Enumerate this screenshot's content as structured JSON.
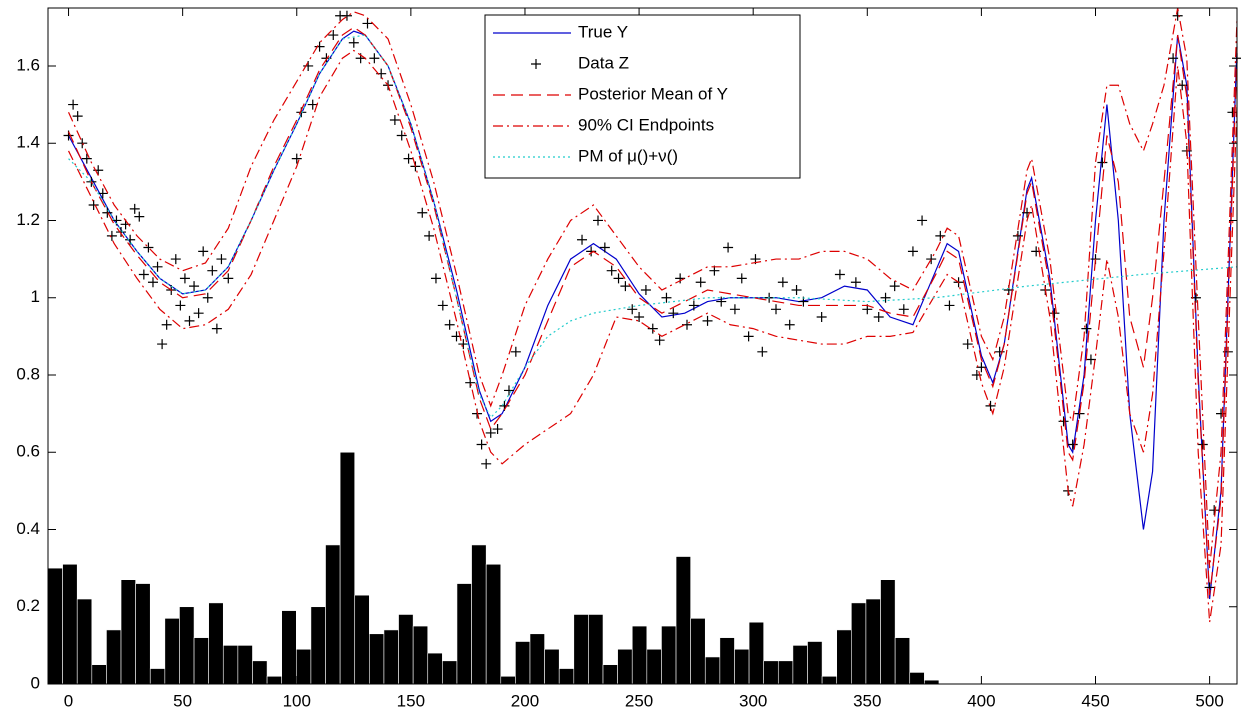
{
  "chart_data": {
    "type": "line",
    "xlim": [
      -9,
      512
    ],
    "ylim": [
      0,
      1.75
    ],
    "xticks": [
      0,
      50,
      100,
      150,
      200,
      250,
      300,
      350,
      400,
      450,
      500
    ],
    "yticks": [
      0,
      0.2,
      0.4,
      0.6,
      0.8,
      1,
      1.2,
      1.4,
      1.6
    ],
    "legend": "top",
    "series": [
      {
        "name": "True Y",
        "color": "#0000cc",
        "style": "solid",
        "x": [
          0,
          10,
          20,
          30,
          40,
          50,
          60,
          70,
          80,
          90,
          100,
          110,
          120,
          125,
          130,
          140,
          150,
          160,
          170,
          180,
          185,
          190,
          200,
          210,
          220,
          230,
          240,
          250,
          260,
          270,
          280,
          290,
          300,
          310,
          320,
          330,
          340,
          350,
          360,
          370,
          380,
          385,
          390,
          400,
          405,
          410,
          420,
          422,
          430,
          438,
          440,
          445,
          450,
          455,
          460,
          465,
          471,
          475,
          480,
          486,
          490,
          495,
          500,
          505,
          512
        ],
        "values": [
          1.42,
          1.31,
          1.2,
          1.12,
          1.05,
          1.01,
          1.02,
          1.08,
          1.2,
          1.33,
          1.45,
          1.58,
          1.67,
          1.69,
          1.68,
          1.6,
          1.45,
          1.25,
          1.02,
          0.76,
          0.68,
          0.7,
          0.82,
          0.98,
          1.1,
          1.14,
          1.1,
          1.01,
          0.95,
          0.96,
          0.99,
          1,
          1,
          1,
          0.99,
          1,
          1.03,
          1.02,
          0.95,
          0.93,
          1.07,
          1.14,
          1.12,
          0.85,
          0.78,
          0.88,
          1.28,
          1.31,
          1.05,
          0.62,
          0.6,
          0.8,
          1.2,
          1.5,
          1.2,
          0.7,
          0.4,
          0.55,
          1.2,
          1.68,
          1.55,
          0.8,
          0.22,
          0.5,
          1.65
        ]
      },
      {
        "name": "Data Z",
        "color": "#000000",
        "style": "none",
        "marker": "+",
        "x": [
          0,
          2,
          4,
          6,
          8,
          10,
          11,
          13,
          15,
          17,
          19,
          21,
          23,
          25,
          27,
          29,
          31,
          33,
          35,
          37,
          39,
          41,
          43,
          45,
          47,
          49,
          51,
          53,
          55,
          57,
          59,
          61,
          63,
          65,
          67,
          70,
          100,
          102,
          105,
          107,
          110,
          113,
          116,
          119,
          122,
          125,
          128,
          131,
          134,
          137,
          140,
          143,
          146,
          149,
          152,
          155,
          158,
          161,
          164,
          167,
          170,
          173,
          176,
          179,
          181,
          183,
          185,
          188,
          191,
          193,
          196,
          225,
          229,
          232,
          235,
          238,
          241,
          244,
          247,
          250,
          253,
          256,
          259,
          262,
          265,
          268,
          271,
          274,
          277,
          280,
          283,
          286,
          289,
          292,
          295,
          298,
          301,
          304,
          307,
          310,
          313,
          316,
          319,
          322,
          330,
          338,
          345,
          350,
          355,
          358,
          362,
          366,
          370,
          374,
          378,
          382,
          386,
          390,
          394,
          398,
          400,
          404,
          408,
          412,
          416,
          420,
          424,
          428,
          432,
          436,
          438,
          440,
          443,
          446,
          448,
          450,
          453,
          484,
          486,
          488,
          490,
          494,
          497,
          500,
          502,
          505,
          508,
          510,
          512
        ],
        "values": [
          1.42,
          1.5,
          1.47,
          1.4,
          1.36,
          1.3,
          1.24,
          1.33,
          1.27,
          1.22,
          1.16,
          1.2,
          1.17,
          1.19,
          1.15,
          1.23,
          1.21,
          1.06,
          1.13,
          1.04,
          1.08,
          0.88,
          0.93,
          1.02,
          1.1,
          0.98,
          1.05,
          0.94,
          1.03,
          0.96,
          1.12,
          1,
          1.07,
          0.92,
          1.1,
          1.05,
          1.36,
          1.48,
          1.6,
          1.5,
          1.65,
          1.62,
          1.68,
          1.73,
          1.73,
          1.66,
          1.62,
          1.71,
          1.62,
          1.58,
          1.55,
          1.46,
          1.42,
          1.36,
          1.34,
          1.22,
          1.16,
          1.05,
          0.98,
          0.93,
          0.9,
          0.88,
          0.78,
          0.7,
          0.62,
          0.57,
          0.65,
          0.66,
          0.72,
          0.76,
          0.86,
          1.15,
          1.12,
          1.2,
          1.13,
          1.07,
          1.05,
          1.03,
          0.97,
          0.95,
          1.02,
          0.92,
          0.89,
          1,
          0.96,
          1.05,
          0.93,
          0.98,
          1.04,
          0.94,
          1.07,
          0.99,
          1.13,
          0.97,
          1.05,
          0.9,
          1.1,
          0.86,
          1,
          0.97,
          1.04,
          0.93,
          1.02,
          0.99,
          0.95,
          1.06,
          1.04,
          0.97,
          0.95,
          1,
          1.03,
          0.97,
          1.12,
          1.2,
          1.1,
          1.16,
          0.98,
          1.04,
          0.88,
          0.8,
          0.82,
          0.72,
          0.86,
          1.02,
          1.16,
          1.22,
          1.12,
          1.02,
          0.96,
          0.68,
          0.5,
          0.62,
          0.7,
          0.92,
          0.84,
          1.1,
          1.35,
          1.62,
          1.73,
          1.55,
          1.38,
          1,
          0.62,
          0.25,
          0.45,
          0.7,
          0.86,
          1.48,
          1.62
        ]
      },
      {
        "name": "Posterior Mean of Y",
        "color": "#dd0000",
        "style": "dashed",
        "x": [
          0,
          10,
          20,
          30,
          40,
          50,
          60,
          70,
          80,
          90,
          100,
          110,
          120,
          125,
          130,
          140,
          150,
          160,
          170,
          180,
          185,
          190,
          200,
          210,
          220,
          230,
          240,
          250,
          260,
          270,
          280,
          290,
          300,
          310,
          320,
          330,
          340,
          350,
          360,
          370,
          380,
          385,
          390,
          400,
          405,
          410,
          420,
          422,
          430,
          438,
          440,
          445,
          450,
          455,
          460,
          465,
          471,
          475,
          480,
          486,
          490,
          495,
          500,
          505,
          512
        ],
        "values": [
          1.43,
          1.3,
          1.19,
          1.11,
          1.04,
          1.0,
          1.01,
          1.07,
          1.2,
          1.34,
          1.46,
          1.59,
          1.68,
          1.7,
          1.68,
          1.6,
          1.44,
          1.24,
          1.0,
          0.74,
          0.66,
          0.7,
          0.8,
          0.94,
          1.08,
          1.12,
          1.08,
          1.0,
          0.96,
          0.99,
          1.02,
          1.01,
          1.0,
          0.99,
          0.98,
          0.98,
          0.98,
          0.98,
          0.96,
          0.95,
          1.06,
          1.12,
          1.1,
          0.84,
          0.77,
          0.88,
          1.27,
          1.3,
          1.03,
          0.6,
          0.58,
          0.78,
          1.1,
          1.42,
          1.3,
          0.95,
          0.82,
          1.0,
          1.3,
          1.68,
          1.52,
          0.78,
          0.23,
          0.48,
          1.62
        ]
      },
      {
        "name": "90% CI Endpoints",
        "color": "#dd0000",
        "style": "dashdot",
        "x": [
          0,
          10,
          20,
          30,
          40,
          50,
          60,
          70,
          80,
          90,
          100,
          110,
          120,
          125,
          130,
          140,
          150,
          160,
          170,
          180,
          185,
          190,
          200,
          210,
          220,
          230,
          240,
          250,
          260,
          270,
          280,
          290,
          300,
          310,
          320,
          330,
          340,
          350,
          360,
          370,
          380,
          385,
          390,
          400,
          405,
          410,
          420,
          422,
          430,
          438,
          440,
          445,
          450,
          455,
          460,
          465,
          471,
          475,
          480,
          486,
          490,
          495,
          500,
          505,
          512
        ],
        "lower": [
          1.38,
          1.26,
          1.14,
          1.05,
          0.97,
          0.92,
          0.93,
          0.97,
          1.06,
          1.2,
          1.34,
          1.52,
          1.62,
          1.64,
          1.62,
          1.55,
          1.38,
          1.18,
          0.94,
          0.68,
          0.6,
          0.57,
          0.62,
          0.66,
          0.7,
          0.8,
          0.95,
          0.94,
          0.9,
          0.93,
          0.96,
          0.93,
          0.92,
          0.9,
          0.89,
          0.88,
          0.88,
          0.9,
          0.9,
          0.91,
          1.01,
          1.06,
          1.04,
          0.78,
          0.7,
          0.82,
          1.2,
          1.24,
          0.95,
          0.5,
          0.46,
          0.62,
          0.85,
          1.1,
          0.95,
          0.7,
          0.6,
          0.75,
          1.12,
          1.6,
          1.4,
          0.6,
          0.16,
          0.36,
          1.5
        ],
        "upper": [
          1.48,
          1.35,
          1.24,
          1.16,
          1.1,
          1.07,
          1.09,
          1.18,
          1.34,
          1.46,
          1.56,
          1.66,
          1.72,
          1.74,
          1.73,
          1.67,
          1.5,
          1.3,
          1.06,
          0.8,
          0.72,
          0.8,
          0.98,
          1.1,
          1.2,
          1.24,
          1.16,
          1.08,
          1.02,
          1.05,
          1.08,
          1.08,
          1.09,
          1.1,
          1.1,
          1.12,
          1.12,
          1.1,
          1.05,
          1.02,
          1.12,
          1.18,
          1.16,
          0.9,
          0.84,
          0.95,
          1.33,
          1.36,
          1.1,
          0.7,
          0.68,
          0.9,
          1.35,
          1.55,
          1.55,
          1.45,
          1.38,
          1.45,
          1.55,
          1.75,
          1.62,
          0.95,
          0.3,
          0.6,
          1.72
        ]
      },
      {
        "name": "PM of μ()+ν()",
        "color": "#22cccc",
        "style": "dotted",
        "x": [
          0,
          10,
          20,
          30,
          40,
          50,
          60,
          70,
          80,
          90,
          100,
          110,
          120,
          130,
          140,
          150,
          160,
          170,
          180,
          185,
          190,
          200,
          210,
          220,
          230,
          250,
          280,
          320,
          350,
          380,
          420,
          470,
          512
        ],
        "values": [
          1.36,
          1.3,
          1.2,
          1.12,
          1.05,
          1.01,
          1.02,
          1.08,
          1.2,
          1.33,
          1.45,
          1.58,
          1.67,
          1.68,
          1.6,
          1.45,
          1.25,
          1.0,
          0.75,
          0.69,
          0.72,
          0.82,
          0.9,
          0.94,
          0.96,
          0.98,
          1.0,
          1.0,
          0.99,
          1.0,
          1.03,
          1.06,
          1.08
        ]
      }
    ],
    "histogram": {
      "color": "#000000",
      "bins": [
        -9.0,
        -2.6,
        3.8,
        10.2,
        16.6,
        23.0,
        29.4,
        35.8,
        42.2,
        48.6,
        55.0,
        61.4,
        67.8,
        74.2,
        80.6,
        87.0,
        93.4,
        99.8,
        106.2,
        112.6,
        119.0,
        125.4,
        131.8,
        138.2,
        144.6,
        151.0,
        157.4,
        163.8,
        170.2,
        176.6,
        183.0,
        189.4,
        195.8,
        202.2,
        208.6,
        215.0,
        221.4,
        227.8,
        234.2,
        240.6,
        247.0,
        253.4,
        259.8,
        266.2,
        272.6,
        279.0,
        285.4,
        291.8,
        298.2,
        304.6,
        311.0,
        317.4,
        323.8,
        330.2,
        336.6,
        343.0,
        349.4,
        355.8,
        362.2,
        368.6,
        375.0,
        381.4
      ],
      "values": [
        0.3,
        0.31,
        0.22,
        0.05,
        0.14,
        0.27,
        0.26,
        0.04,
        0.17,
        0.2,
        0.12,
        0.21,
        0.1,
        0.1,
        0.06,
        0.02,
        0.19,
        0.09,
        0.2,
        0.36,
        0.6,
        0.23,
        0.13,
        0.14,
        0.18,
        0.15,
        0.08,
        0.06,
        0.26,
        0.36,
        0.31,
        0.02,
        0.11,
        0.13,
        0.09,
        0.04,
        0.18,
        0.18,
        0.05,
        0.09,
        0.15,
        0.09,
        0.15,
        0.33,
        0.17,
        0.07,
        0.12,
        0.09,
        0.16,
        0.06,
        0.06,
        0.1,
        0.11,
        0.02,
        0.14,
        0.21,
        0.22,
        0.27,
        0.12,
        0.03,
        0.01
      ]
    }
  }
}
